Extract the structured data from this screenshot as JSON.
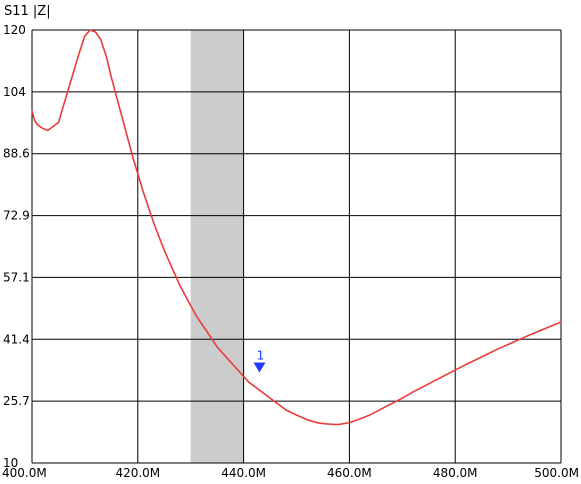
{
  "chart_data": {
    "type": "line",
    "title": "S11 |Z|",
    "xlabel": "",
    "ylabel": "",
    "xlim": [
      400,
      500
    ],
    "ylim": [
      10,
      120
    ],
    "x_ticks": [
      "400.0M",
      "420.0M",
      "440.0M",
      "460.0M",
      "480.0M",
      "500.0M"
    ],
    "y_ticks": [
      "120",
      "104",
      "88.6",
      "72.9",
      "57.1",
      "41.4",
      "25.7",
      "10"
    ],
    "grid": true,
    "highlight_band": {
      "x_start": 430,
      "x_end": 440,
      "color": "#cccccc"
    },
    "series": [
      {
        "color": "#e83c3c",
        "x": [
          400,
          400.5,
          401,
          402,
          403,
          404,
          405,
          406,
          407,
          408,
          409,
          410,
          411,
          412,
          413,
          414,
          415,
          416,
          417,
          418,
          419,
          420,
          421,
          422,
          423,
          424,
          425,
          426,
          427,
          428,
          429,
          430,
          431,
          432,
          433,
          434,
          435,
          436,
          437,
          438,
          439,
          440,
          441,
          442,
          443,
          444,
          445,
          446,
          447,
          448,
          449,
          450,
          451,
          452,
          453,
          454,
          455,
          456,
          457,
          458,
          459,
          460,
          461,
          462,
          463,
          464,
          465,
          466,
          467,
          468,
          469,
          470,
          472,
          474,
          476,
          478,
          480,
          482,
          484,
          486,
          488,
          490,
          492,
          494,
          496,
          498,
          500
        ],
        "values": [
          99.5,
          97,
          96,
          95,
          94.5,
          95.5,
          96.5,
          101,
          105.5,
          110,
          114.5,
          118.5,
          120,
          119.5,
          117.5,
          113.5,
          108,
          103,
          98,
          93,
          88,
          83.5,
          79,
          75,
          71,
          67.5,
          64,
          61,
          58,
          55,
          52.5,
          50,
          47.5,
          45.5,
          43.5,
          41.5,
          39.5,
          38,
          36.5,
          35,
          33.5,
          32,
          30.5,
          29.5,
          28.5,
          27.5,
          26.5,
          25.5,
          24.5,
          23.5,
          22.8,
          22.2,
          21.6,
          21,
          20.6,
          20.2,
          20,
          19.9,
          19.8,
          19.8,
          20,
          20.3,
          20.7,
          21.2,
          21.7,
          22.3,
          23,
          23.7,
          24.4,
          25.1,
          25.8,
          26.5,
          28,
          29.4,
          30.8,
          32.2,
          33.6,
          35,
          36.3,
          37.6,
          38.9,
          40.1,
          41.3,
          42.5,
          43.6,
          44.7,
          45.8
        ]
      }
    ],
    "markers": [
      {
        "label": "1",
        "x": 443,
        "y": 34,
        "color": "#1e3cff"
      }
    ]
  }
}
